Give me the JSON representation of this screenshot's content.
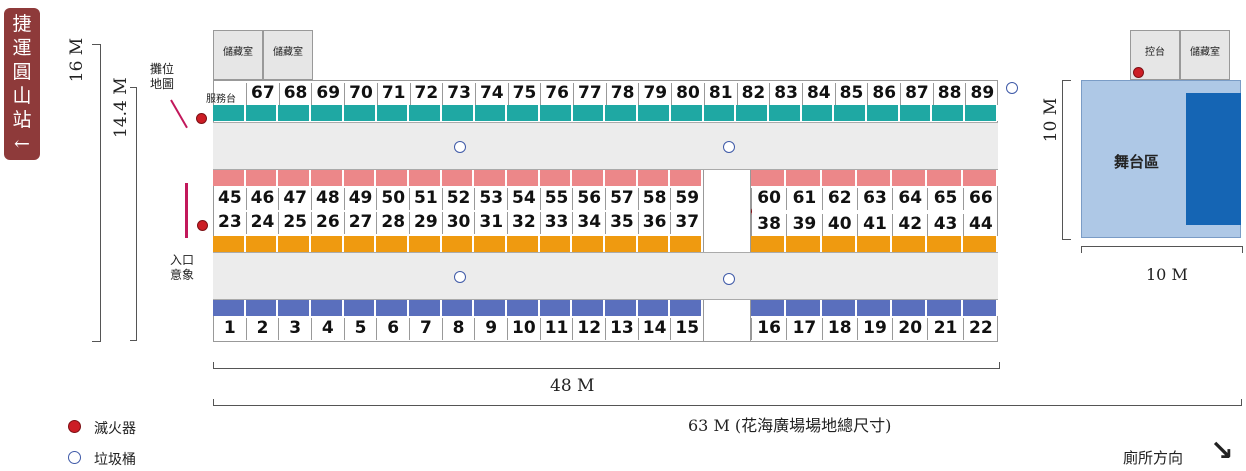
{
  "mrt_station": {
    "chars": [
      "捷",
      "運",
      "圓",
      "山",
      "站",
      "←"
    ]
  },
  "dimensions": {
    "overall_height": "16 M",
    "inner_height": "14.4 M",
    "main_width": "48 M",
    "total_width": "63 M (花海廣場場地總尺寸)",
    "stage_height": "10 M",
    "stage_width": "10 M"
  },
  "labels": {
    "booth_map": [
      "攤位",
      "地圖"
    ],
    "entrance": [
      "入口",
      "意象"
    ],
    "service_desk": "服務台",
    "storage_1": "儲藏室",
    "storage_2": "儲藏室",
    "storage_3": "儲藏室",
    "control": "控台",
    "stage": "舞台區",
    "restroom": "廁所方向",
    "restroom_arrow": "↘"
  },
  "legend": {
    "extinguisher": "滅火器",
    "trash": "垃圾桶"
  },
  "colors": {
    "teal": "#1fa8a3",
    "pink": "#ec8789",
    "orange": "#ef9a10",
    "blue": "#5a6fbd",
    "stage_bg": "#aec8e6",
    "stage_panel": "#1565b4",
    "red_dot": "#cc1d25"
  },
  "booths": {
    "top": [
      "67",
      "68",
      "69",
      "70",
      "71",
      "72",
      "73",
      "74",
      "75",
      "76",
      "77",
      "78",
      "79",
      "80",
      "81",
      "82",
      "83",
      "84",
      "85",
      "86",
      "87",
      "88",
      "89"
    ],
    "upper_middle_left": [
      "45",
      "46",
      "47",
      "48",
      "49",
      "50",
      "51",
      "52",
      "53",
      "54",
      "55",
      "56",
      "57",
      "58",
      "59"
    ],
    "upper_middle_right": [
      "60",
      "61",
      "62",
      "63",
      "64",
      "65",
      "66"
    ],
    "lower_middle_left": [
      "23",
      "24",
      "25",
      "26",
      "27",
      "28",
      "29",
      "30",
      "31",
      "32",
      "33",
      "34",
      "35",
      "36",
      "37"
    ],
    "lower_middle_right": [
      "38",
      "39",
      "40",
      "41",
      "42",
      "43",
      "44"
    ],
    "bottom_left": [
      "1",
      "2",
      "3",
      "4",
      "5",
      "6",
      "7",
      "8",
      "9",
      "10",
      "11",
      "12",
      "13",
      "14",
      "15"
    ],
    "bottom_right": [
      "16",
      "17",
      "18",
      "19",
      "20",
      "21",
      "22"
    ]
  }
}
